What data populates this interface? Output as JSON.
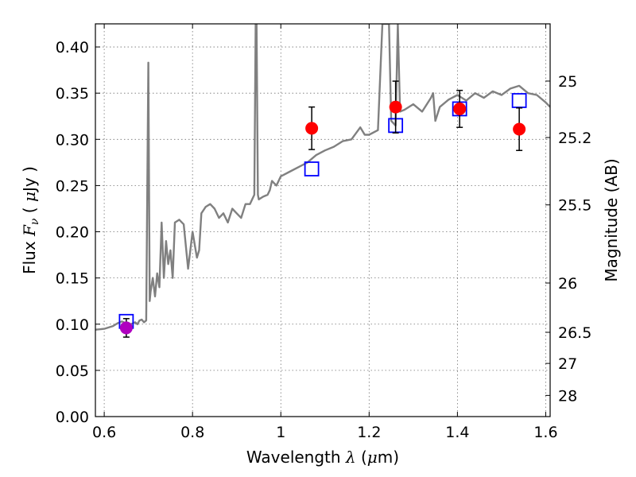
{
  "chart_data": {
    "type": "scatter",
    "title": "",
    "xlabel": {
      "prefix": "Wavelength  ",
      "symbol": "λ",
      "unit_open": " (",
      "mu": "μ",
      "unit_rest": "m)"
    },
    "ylabel": {
      "prefix": "Flux  ",
      "symbol": "F",
      "sub": "ν",
      "unit_open": "  ( ",
      "mu": "μ",
      "unit_rest": "Jy )"
    },
    "y2label": "Magnitude (AB)",
    "xlim": [
      0.58,
      1.61
    ],
    "ylim": [
      0.0,
      0.425
    ],
    "grid": true,
    "x_ticks": [
      {
        "value": 0.6,
        "label": "0.6"
      },
      {
        "value": 0.8,
        "label": "0.8"
      },
      {
        "value": 1.0,
        "label": "1"
      },
      {
        "value": 1.2,
        "label": "1.2"
      },
      {
        "value": 1.4,
        "label": "1.4"
      },
      {
        "value": 1.6,
        "label": "1.6"
      }
    ],
    "y_ticks": [
      {
        "value": 0.0,
        "label": "0.00"
      },
      {
        "value": 0.05,
        "label": "0.05"
      },
      {
        "value": 0.1,
        "label": "0.10"
      },
      {
        "value": 0.15,
        "label": "0.15"
      },
      {
        "value": 0.2,
        "label": "0.20"
      },
      {
        "value": 0.25,
        "label": "0.25"
      },
      {
        "value": 0.3,
        "label": "0.30"
      },
      {
        "value": 0.35,
        "label": "0.35"
      },
      {
        "value": 0.4,
        "label": "0.40"
      }
    ],
    "y2_ticks": [
      {
        "mag": 25.0,
        "label": "25"
      },
      {
        "mag": 25.2,
        "label": "25.2"
      },
      {
        "mag": 25.5,
        "label": "25.5"
      },
      {
        "mag": 26.0,
        "label": "26"
      },
      {
        "mag": 26.5,
        "label": "26.5"
      },
      {
        "mag": 27.0,
        "label": "27"
      },
      {
        "mag": 28.0,
        "label": "28"
      }
    ],
    "colors": {
      "model": "#808080",
      "observed": "#ff0000",
      "observed_optical": "#b000c0",
      "synthetic": "#0000ff",
      "errorbar": "#000000"
    },
    "series": [
      {
        "kind": "line",
        "x": [
          0.58,
          0.6,
          0.62,
          0.63,
          0.64,
          0.65,
          0.66,
          0.67,
          0.675,
          0.68,
          0.685,
          0.69,
          0.695,
          0.7,
          0.703,
          0.705,
          0.71,
          0.715,
          0.72,
          0.725,
          0.73,
          0.735,
          0.74,
          0.745,
          0.75,
          0.755,
          0.76,
          0.77,
          0.78,
          0.79,
          0.8,
          0.81,
          0.815,
          0.82,
          0.83,
          0.84,
          0.85,
          0.86,
          0.87,
          0.88,
          0.89,
          0.9,
          0.91,
          0.92,
          0.93,
          0.94,
          0.943,
          0.945,
          0.948,
          0.95,
          0.96,
          0.97,
          0.975,
          0.98,
          0.99,
          1.0,
          1.02,
          1.04,
          1.06,
          1.08,
          1.1,
          1.12,
          1.14,
          1.16,
          1.18,
          1.19,
          1.2,
          1.22,
          1.23,
          1.235,
          1.245,
          1.25,
          1.26,
          1.265,
          1.27,
          1.28,
          1.3,
          1.32,
          1.34,
          1.345,
          1.35,
          1.36,
          1.38,
          1.4,
          1.42,
          1.44,
          1.46,
          1.48,
          1.5,
          1.52,
          1.54,
          1.56,
          1.58,
          1.6,
          1.61
        ],
        "y": [
          0.094,
          0.095,
          0.098,
          0.101,
          0.103,
          0.101,
          0.1,
          0.102,
          0.1,
          0.104,
          0.105,
          0.102,
          0.104,
          0.383,
          0.125,
          0.135,
          0.15,
          0.13,
          0.155,
          0.14,
          0.21,
          0.15,
          0.19,
          0.165,
          0.18,
          0.15,
          0.21,
          0.213,
          0.208,
          0.16,
          0.2,
          0.172,
          0.18,
          0.22,
          0.227,
          0.23,
          0.225,
          0.215,
          0.22,
          0.21,
          0.225,
          0.22,
          0.215,
          0.23,
          0.23,
          0.24,
          0.425,
          0.425,
          0.24,
          0.235,
          0.238,
          0.24,
          0.245,
          0.255,
          0.25,
          0.26,
          0.265,
          0.27,
          0.275,
          0.283,
          0.288,
          0.292,
          0.298,
          0.3,
          0.313,
          0.305,
          0.305,
          0.31,
          0.425,
          0.425,
          0.425,
          0.32,
          0.315,
          0.425,
          0.33,
          0.332,
          0.338,
          0.33,
          0.345,
          0.35,
          0.32,
          0.335,
          0.343,
          0.348,
          0.342,
          0.35,
          0.345,
          0.352,
          0.348,
          0.355,
          0.358,
          0.35,
          0.348,
          0.34,
          0.335
        ]
      },
      {
        "kind": "synthetic",
        "x": [
          0.65,
          1.07,
          1.26,
          1.405,
          1.54
        ],
        "y": [
          0.103,
          0.268,
          0.315,
          0.333,
          0.342
        ]
      },
      {
        "kind": "observed",
        "x": [
          0.65,
          1.07,
          1.26,
          1.405,
          1.54
        ],
        "y": [
          0.096,
          0.312,
          0.335,
          0.333,
          0.311
        ],
        "yerr": [
          0.01,
          0.023,
          0.028,
          0.02,
          0.023
        ],
        "point_color": [
          "#b000c0",
          "#ff0000",
          "#ff0000",
          "#ff0000",
          "#ff0000"
        ]
      }
    ]
  }
}
